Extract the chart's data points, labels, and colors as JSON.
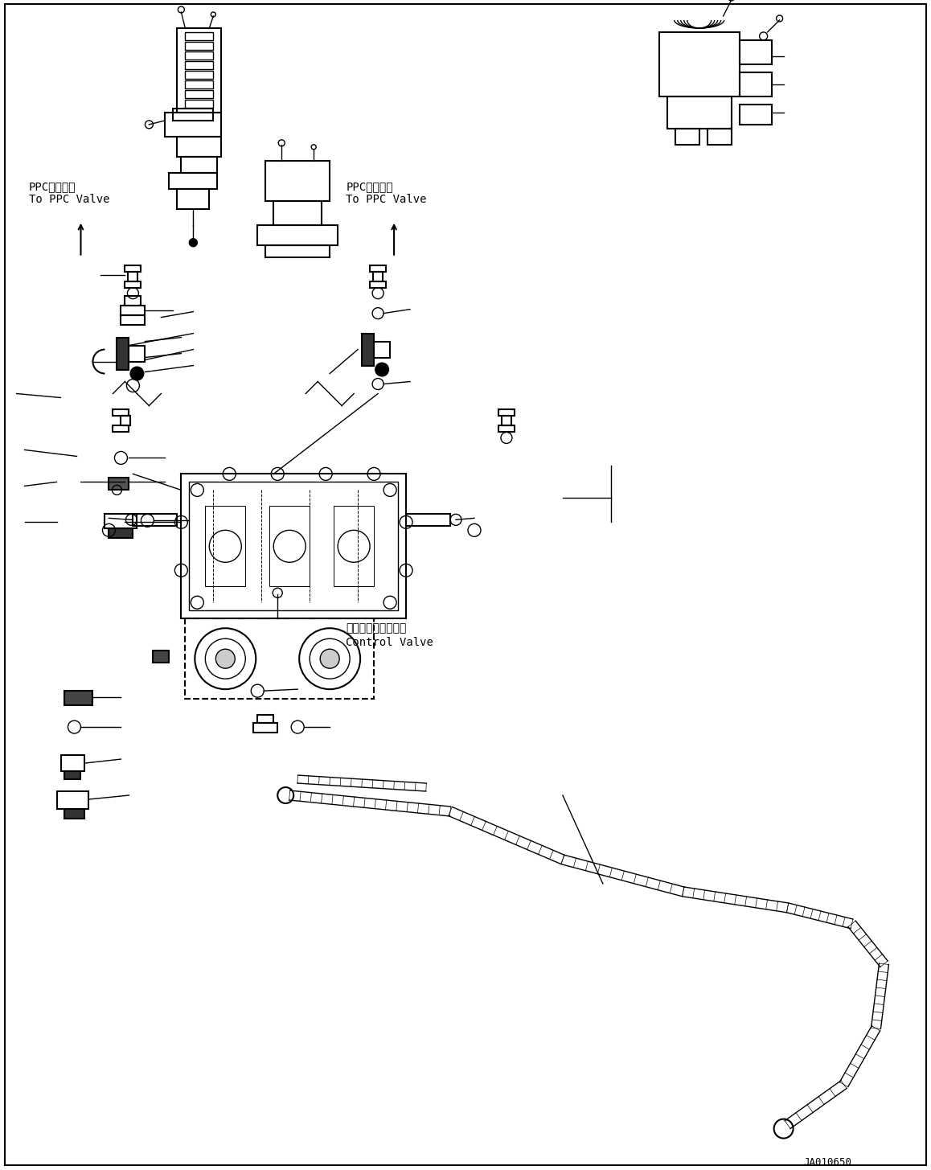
{
  "background_color": "#ffffff",
  "diagram_color": "#000000",
  "title_code": "JA010650",
  "label_ppc_left": "PPCバルブへ\nTo PPC Valve",
  "label_ppc_right": "PPCバルブへ\nTo PPC Valve",
  "label_control_valve_jp": "コントロールバルブ",
  "label_control_valve_en": "Control Valve",
  "fig_width": 11.58,
  "fig_height": 14.55,
  "dpi": 100
}
